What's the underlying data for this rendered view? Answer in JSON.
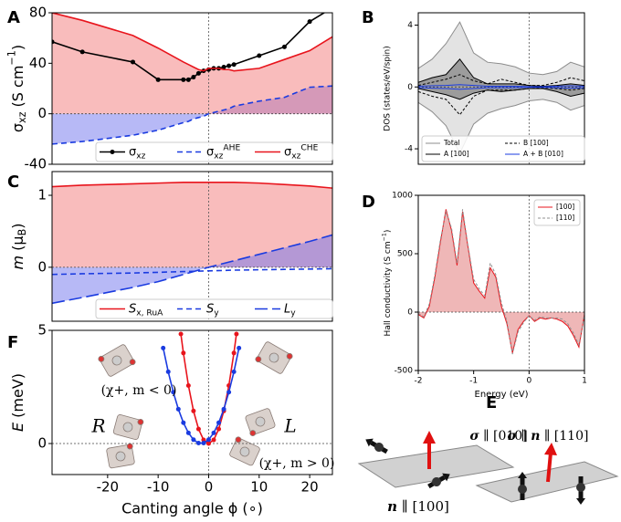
{
  "chart_data": [
    {
      "type": "line",
      "panel": "A",
      "ylabel": [
        "σ",
        {
          "sub": "xz"
        },
        " (S cm",
        {
          "sup": "−1"
        },
        ")"
      ],
      "x": [
        -31,
        -25,
        -15,
        -10,
        -5,
        -4,
        -3,
        -2,
        -1,
        0,
        1,
        2,
        3,
        4,
        5,
        10,
        15,
        20,
        24.5
      ],
      "xlim": [
        -31,
        24.5
      ],
      "ylim": [
        -40,
        80
      ],
      "yticks": [
        -40,
        0,
        40,
        80
      ],
      "vline": 0,
      "hline": 0,
      "legend": "lower center",
      "series": [
        {
          "name": [
            "σ",
            {
              "sub": "xz"
            }
          ],
          "color": "#000000",
          "style": "solid",
          "markers": true,
          "values": [
            57,
            49,
            41,
            27,
            27,
            27,
            29,
            32,
            34,
            35,
            36,
            36,
            37,
            38,
            39,
            46,
            53,
            73,
            84
          ]
        },
        {
          "name": [
            "σ",
            {
              "sub": "xz"
            },
            {
              "sup": "AHE"
            }
          ],
          "color": "#1a3be0",
          "style": "dashed",
          "fill": "#6f74ee",
          "values": [
            -24,
            -22,
            -17,
            -13,
            -7,
            -6,
            -4,
            -3,
            -2,
            0,
            1,
            2,
            3,
            4,
            6,
            10,
            13,
            21,
            22
          ]
        },
        {
          "name": [
            "σ",
            {
              "sub": "xz"
            },
            {
              "sup": "CHE"
            }
          ],
          "color": "#e8141c",
          "style": "solid",
          "fill": "#f47a7a",
          "values": [
            80,
            74,
            62,
            52,
            41,
            39,
            37,
            35,
            34,
            36,
            36,
            36,
            35,
            35,
            34,
            36,
            43,
            50,
            61
          ]
        }
      ]
    },
    {
      "type": "line",
      "panel": "B",
      "ylabel": "DOS (states/eV/spin)",
      "x": [
        -2,
        -1.75,
        -1.5,
        -1.25,
        -1,
        -0.75,
        -0.5,
        -0.25,
        0,
        0.25,
        0.5,
        0.75,
        1
      ],
      "xlim": [
        -2,
        1
      ],
      "ylim": [
        -5,
        4.8
      ],
      "yticks": [
        -4,
        0,
        4
      ],
      "vline": 0,
      "hline": 0,
      "legend": "lower center",
      "legend_columns": 2,
      "series": [
        {
          "name": "Total",
          "color": "#8c8c8c",
          "style": "solid",
          "fill": "#c8c8c8",
          "values": [
            1.2,
            1.8,
            2.8,
            4.2,
            2.2,
            1.6,
            1.5,
            1.3,
            0.9,
            0.8,
            1.0,
            1.6,
            1.3
          ],
          "values_down": [
            -1.0,
            -1.6,
            -2.5,
            -4.3,
            -2.4,
            -1.7,
            -1.4,
            -1.2,
            -0.9,
            -0.8,
            -1.0,
            -1.5,
            -1.2
          ]
        },
        {
          "name": "A [100]",
          "color": "#000000",
          "style": "solid",
          "fill": "#555555",
          "values": [
            0.3,
            0.6,
            0.8,
            1.8,
            0.6,
            0.2,
            0.2,
            0.2,
            0.1,
            0.05,
            0.1,
            0.2,
            0.1
          ],
          "values_down": [
            -0.1,
            -0.3,
            -0.5,
            -0.8,
            -0.4,
            -0.2,
            -0.3,
            -0.2,
            -0.1,
            -0.1,
            -0.3,
            -0.6,
            -0.4
          ]
        },
        {
          "name": "B [100]",
          "color": "#000000",
          "style": "dashed",
          "values": [
            0.1,
            0.3,
            0.5,
            0.8,
            0.4,
            0.2,
            0.5,
            0.3,
            0.1,
            0.1,
            0.3,
            0.6,
            0.4
          ],
          "values_down": [
            -0.3,
            -0.6,
            -0.8,
            -1.8,
            -0.6,
            -0.2,
            -0.2,
            -0.2,
            -0.1,
            -0.05,
            -0.1,
            -0.2,
            -0.1
          ]
        },
        {
          "name": "A + B [010]",
          "color": "#1a3be0",
          "style": "solid",
          "values": [
            0.05,
            0.08,
            0.1,
            0.15,
            0.1,
            0.05,
            0.05,
            0.05,
            0.02,
            0.02,
            0.05,
            0.08,
            0.05
          ],
          "values_down": [
            -0.05,
            -0.08,
            -0.1,
            -0.15,
            -0.1,
            -0.05,
            -0.05,
            -0.05,
            -0.02,
            -0.02,
            -0.05,
            -0.08,
            -0.05
          ]
        }
      ]
    },
    {
      "type": "line",
      "panel": "C",
      "ylabel": [
        {
          "i": "m"
        },
        " (μ",
        {
          "sub": "B"
        },
        ")"
      ],
      "x": [
        -31,
        -25,
        -20,
        -15,
        -10,
        -5,
        0,
        5,
        10,
        15,
        20,
        24.5
      ],
      "xlim": [
        -31,
        24.5
      ],
      "ylim": [
        -0.75,
        1.33
      ],
      "yticks": [
        0,
        1
      ],
      "vline": 0,
      "hline": 0,
      "legend": "lower center",
      "series": [
        {
          "name": [
            {
              "i": "S"
            },
            {
              "sub": "x, RuA"
            }
          ],
          "color": "#e8141c",
          "style": "solid",
          "fill": "#f47a7a",
          "values": [
            1.12,
            1.14,
            1.15,
            1.16,
            1.17,
            1.18,
            1.18,
            1.18,
            1.17,
            1.15,
            1.13,
            1.1
          ]
        },
        {
          "name": [
            {
              "i": "S"
            },
            {
              "sub": "y"
            }
          ],
          "color": "#1a3be0",
          "style": "dashed",
          "values": [
            -0.1,
            -0.09,
            -0.085,
            -0.08,
            -0.07,
            -0.06,
            -0.05,
            -0.04,
            -0.035,
            -0.03,
            -0.025,
            -0.02
          ]
        },
        {
          "name": [
            {
              "i": "L"
            },
            {
              "sub": "y"
            }
          ],
          "color": "#1a3be0",
          "style": "longdash",
          "fill": "#6f74ee",
          "values": [
            -0.5,
            -0.42,
            -0.35,
            -0.28,
            -0.2,
            -0.1,
            0,
            0.09,
            0.18,
            0.27,
            0.36,
            0.45
          ]
        }
      ]
    },
    {
      "type": "line",
      "panel": "D",
      "ylabel": [
        "Hall conductivity (S cm",
        {
          "sup": "−1"
        },
        ")"
      ],
      "xlabel": "Energy (eV)",
      "x": [
        -2,
        -1.9,
        -1.8,
        -1.7,
        -1.6,
        -1.5,
        -1.4,
        -1.3,
        -1.2,
        -1.1,
        -1,
        -0.9,
        -0.8,
        -0.7,
        -0.6,
        -0.5,
        -0.4,
        -0.3,
        -0.2,
        -0.1,
        0,
        0.1,
        0.2,
        0.3,
        0.4,
        0.5,
        0.6,
        0.7,
        0.8,
        0.9,
        1
      ],
      "xlim": [
        -2,
        1
      ],
      "ylim": [
        -500,
        1000
      ],
      "xticks": [
        -2,
        -1,
        0,
        1
      ],
      "yticks": [
        -500,
        0,
        500,
        1000
      ],
      "vline": 0,
      "hline": 0,
      "legend": "upper right",
      "series": [
        {
          "name": "[100]",
          "color": "#e8141c",
          "style": "solid",
          "fill": "#e07070",
          "values": [
            -20,
            -50,
            50,
            300,
            600,
            880,
            700,
            400,
            860,
            550,
            250,
            180,
            120,
            380,
            300,
            50,
            -100,
            -350,
            -150,
            -80,
            -30,
            -80,
            -50,
            -60,
            -50,
            -60,
            -80,
            -120,
            -200,
            -300,
            -20
          ]
        },
        {
          "name": "[110]",
          "color": "#909090",
          "style": "dashed",
          "values": [
            -10,
            -40,
            70,
            320,
            620,
            860,
            720,
            420,
            880,
            560,
            280,
            200,
            140,
            420,
            320,
            80,
            -80,
            -360,
            -170,
            -90,
            -30,
            -70,
            -40,
            -50,
            -50,
            -50,
            -60,
            -100,
            -180,
            -280,
            -20
          ]
        }
      ]
    },
    {
      "type": "line",
      "panel": "F",
      "ylabel": [
        {
          "i": "E"
        },
        " (meV)"
      ],
      "xlabel": "Canting angle ϕ (∘)",
      "xlim": [
        -31,
        24.5
      ],
      "ylim": [
        -1.37,
        5
      ],
      "xticks": [
        -20,
        -10,
        0,
        10,
        20
      ],
      "yticks": [
        0,
        5
      ],
      "vline": 0,
      "hline": 0,
      "annotations": [
        "(χ+, m < 0)",
        "R",
        "L",
        "(χ+, m > 0)"
      ],
      "series": [
        {
          "color": "#e8141c",
          "style": "solid",
          "markers": true,
          "x": [
            -5.5,
            -5,
            -4,
            -3,
            -2,
            -1,
            0,
            1,
            2,
            3,
            4,
            5,
            5.5
          ],
          "values": [
            4.84,
            4,
            2.56,
            1.44,
            0.64,
            0.16,
            0,
            0.16,
            0.64,
            1.44,
            2.56,
            4,
            4.84
          ]
        },
        {
          "color": "#1a3be0",
          "style": "solid",
          "markers": true,
          "x": [
            -9,
            -8,
            -7,
            -6,
            -5,
            -4,
            -3,
            -2,
            -1,
            0,
            1,
            2,
            3,
            4,
            5,
            6
          ],
          "values": [
            4.22,
            3.17,
            2.27,
            1.52,
            0.92,
            0.47,
            0.17,
            0.02,
            0.02,
            0.17,
            0.47,
            0.92,
            1.52,
            2.27,
            3.17,
            4.22
          ]
        }
      ]
    }
  ],
  "diagram": {
    "panel": "E",
    "labels": [
      [
        {
          "b": "σ"
        },
        " ∥ [010]"
      ],
      [
        {
          "b": "n"
        },
        " ∥ [100]"
      ],
      [
        {
          "b": "σ"
        },
        " ∥ ",
        {
          "b": "n"
        },
        " ∥ [110]"
      ]
    ]
  }
}
